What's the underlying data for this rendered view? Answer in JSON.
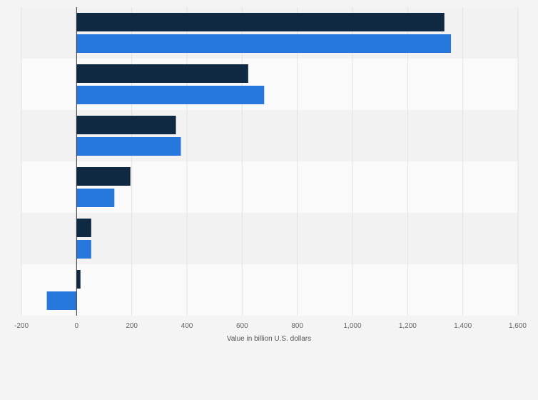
{
  "chart_data": {
    "type": "bar",
    "orientation": "horizontal",
    "title": "",
    "xlabel": "Value in billion U.S. dollars",
    "ylabel": "",
    "xlim": [
      -200,
      1600
    ],
    "x_ticks": [
      "-200",
      "0",
      "200",
      "400",
      "600",
      "800",
      "1,000",
      "1,200",
      "1,400",
      "1,600"
    ],
    "x_tick_values": [
      -200,
      0,
      200,
      400,
      600,
      800,
      1000,
      1200,
      1400,
      1600
    ],
    "categories": [
      "",
      "",
      "",
      "",
      "",
      ""
    ],
    "series": [
      {
        "color": "#0f2942",
        "values": [
          1333,
          622,
          360,
          195,
          53,
          14
        ]
      },
      {
        "color": "#2778dc",
        "values": [
          1357,
          680,
          378,
          137,
          53,
          -108
        ]
      }
    ],
    "grid": true,
    "legend": "none"
  }
}
